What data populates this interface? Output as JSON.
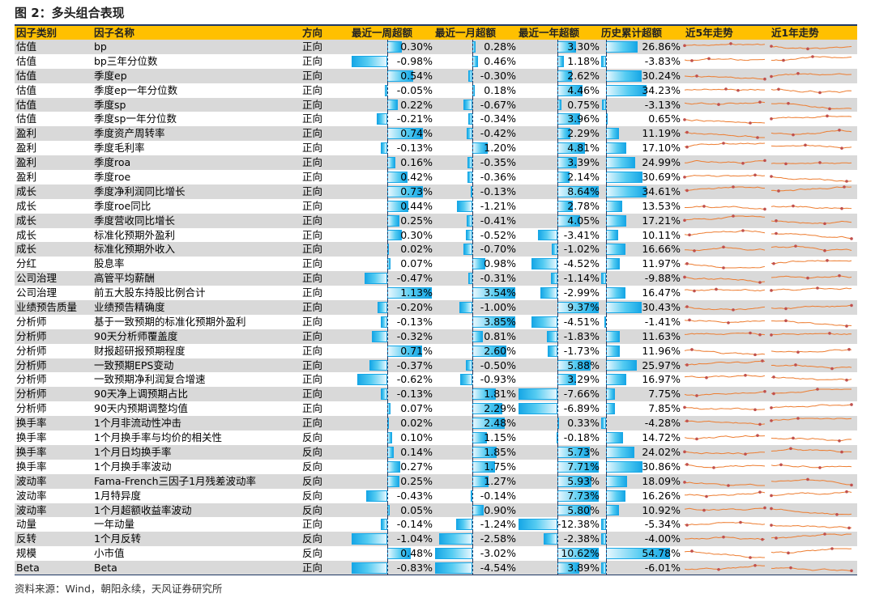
{
  "title": "图 2：多头组合表现",
  "source": "资料来源：Wind，朝阳永续，天风证券研究所",
  "headers": [
    "因子类别",
    "因子名称",
    "方向",
    "最近一周超额",
    "最近一月超额",
    "最近一年超额",
    "历史累计超额",
    "近5年走势",
    "近1年走势"
  ],
  "line_color": "#ed7d31",
  "bar_color": "#17a7e6",
  "rows": [
    {
      "cat": "估值",
      "name": "bp",
      "dir": "正向",
      "w": "0.30%",
      "m": "0.28%",
      "y": "3.30%",
      "h": "26.86%"
    },
    {
      "cat": "估值",
      "name": "bp三年分位数",
      "dir": "正向",
      "w": "-0.98%",
      "m": "0.46%",
      "y": "1.18%",
      "h": "-3.83%"
    },
    {
      "cat": "估值",
      "name": "季度ep",
      "dir": "正向",
      "w": "0.54%",
      "m": "-0.30%",
      "y": "2.62%",
      "h": "30.24%"
    },
    {
      "cat": "估值",
      "name": "季度ep一年分位数",
      "dir": "正向",
      "w": "-0.05%",
      "m": "0.18%",
      "y": "4.46%",
      "h": "34.23%"
    },
    {
      "cat": "估值",
      "name": "季度sp",
      "dir": "正向",
      "w": "0.22%",
      "m": "-0.67%",
      "y": "0.75%",
      "h": "-3.13%"
    },
    {
      "cat": "估值",
      "name": "季度sp一年分位数",
      "dir": "正向",
      "w": "-0.21%",
      "m": "-0.34%",
      "y": "3.96%",
      "h": "0.65%"
    },
    {
      "cat": "盈利",
      "name": "季度资产周转率",
      "dir": "正向",
      "w": "0.74%",
      "m": "-0.42%",
      "y": "2.29%",
      "h": "11.19%"
    },
    {
      "cat": "盈利",
      "name": "季度毛利率",
      "dir": "正向",
      "w": "-0.13%",
      "m": "1.20%",
      "y": "4.81%",
      "h": "17.10%"
    },
    {
      "cat": "盈利",
      "name": "季度roa",
      "dir": "正向",
      "w": "0.16%",
      "m": "-0.35%",
      "y": "3.39%",
      "h": "24.99%"
    },
    {
      "cat": "盈利",
      "name": "季度roe",
      "dir": "正向",
      "w": "0.42%",
      "m": "-0.36%",
      "y": "2.14%",
      "h": "30.69%"
    },
    {
      "cat": "成长",
      "name": "季度净利润同比增长",
      "dir": "正向",
      "w": "0.73%",
      "m": "-0.13%",
      "y": "8.64%",
      "h": "34.61%"
    },
    {
      "cat": "成长",
      "name": "季度roe同比",
      "dir": "正向",
      "w": "0.44%",
      "m": "-1.21%",
      "y": "2.78%",
      "h": "13.53%"
    },
    {
      "cat": "成长",
      "name": "季度营收同比增长",
      "dir": "正向",
      "w": "0.25%",
      "m": "-0.41%",
      "y": "4.05%",
      "h": "17.21%"
    },
    {
      "cat": "成长",
      "name": "标准化预期外盈利",
      "dir": "正向",
      "w": "0.30%",
      "m": "-0.52%",
      "y": "-3.41%",
      "h": "10.11%"
    },
    {
      "cat": "成长",
      "name": "标准化预期外收入",
      "dir": "正向",
      "w": "0.02%",
      "m": "-0.70%",
      "y": "-1.02%",
      "h": "16.66%"
    },
    {
      "cat": "分红",
      "name": "股息率",
      "dir": "正向",
      "w": "0.07%",
      "m": "0.98%",
      "y": "-4.52%",
      "h": "11.97%"
    },
    {
      "cat": "公司治理",
      "name": "高管平均薪酬",
      "dir": "正向",
      "w": "-0.47%",
      "m": "-0.31%",
      "y": "-1.14%",
      "h": "-9.88%"
    },
    {
      "cat": "公司治理",
      "name": "前五大股东持股比例合计",
      "dir": "正向",
      "w": "1.13%",
      "m": "3.54%",
      "y": "-2.99%",
      "h": "16.47%"
    },
    {
      "cat": "业绩预告质量",
      "name": "业绩预告精确度",
      "dir": "正向",
      "w": "-0.20%",
      "m": "-1.00%",
      "y": "9.37%",
      "h": "30.43%"
    },
    {
      "cat": "分析师",
      "name": "基于一致预期的标准化预期外盈利",
      "dir": "正向",
      "w": "-0.13%",
      "m": "3.85%",
      "y": "-4.51%",
      "h": "-1.41%"
    },
    {
      "cat": "分析师",
      "name": "90天分析师覆盖度",
      "dir": "正向",
      "w": "-0.32%",
      "m": "0.81%",
      "y": "-1.83%",
      "h": "11.63%"
    },
    {
      "cat": "分析师",
      "name": "财报超研报预期程度",
      "dir": "正向",
      "w": "0.71%",
      "m": "2.60%",
      "y": "-1.73%",
      "h": "11.96%"
    },
    {
      "cat": "分析师",
      "name": "一致预期EPS变动",
      "dir": "正向",
      "w": "-0.37%",
      "m": "-0.50%",
      "y": "5.88%",
      "h": "25.97%"
    },
    {
      "cat": "分析师",
      "name": "一致预期净利润复合增速",
      "dir": "正向",
      "w": "-0.62%",
      "m": "-0.93%",
      "y": "3.29%",
      "h": "16.97%"
    },
    {
      "cat": "分析师",
      "name": "90天净上调预期占比",
      "dir": "正向",
      "w": "-0.13%",
      "m": "1.81%",
      "y": "-7.66%",
      "h": "7.75%"
    },
    {
      "cat": "分析师",
      "name": "90天内预期调整均值",
      "dir": "正向",
      "w": "0.07%",
      "m": "2.29%",
      "y": "-6.89%",
      "h": "7.85%"
    },
    {
      "cat": "换手率",
      "name": "1个月非流动性冲击",
      "dir": "正向",
      "w": "0.02%",
      "m": "2.48%",
      "y": "0.33%",
      "h": "-4.28%"
    },
    {
      "cat": "换手率",
      "name": "1个月换手率与均价的相关性",
      "dir": "反向",
      "w": "0.10%",
      "m": "1.15%",
      "y": "-0.18%",
      "h": "14.72%"
    },
    {
      "cat": "换手率",
      "name": "1个月日均换手率",
      "dir": "反向",
      "w": "0.14%",
      "m": "1.85%",
      "y": "5.73%",
      "h": "24.02%"
    },
    {
      "cat": "换手率",
      "name": "1个月换手率波动",
      "dir": "反向",
      "w": "0.27%",
      "m": "1.75%",
      "y": "7.71%",
      "h": "30.86%"
    },
    {
      "cat": "波动率",
      "name": "Fama-French三因子1月残差波动率",
      "dir": "反向",
      "w": "0.25%",
      "m": "1.27%",
      "y": "5.93%",
      "h": "18.09%"
    },
    {
      "cat": "波动率",
      "name": "1月特异度",
      "dir": "反向",
      "w": "-0.43%",
      "m": "-0.14%",
      "y": "7.73%",
      "h": "16.26%"
    },
    {
      "cat": "波动率",
      "name": "1个月超额收益率波动",
      "dir": "反向",
      "w": "0.05%",
      "m": "0.90%",
      "y": "5.80%",
      "h": "10.92%"
    },
    {
      "cat": "动量",
      "name": "一年动量",
      "dir": "正向",
      "w": "-0.14%",
      "m": "-1.24%",
      "y": "-12.38%",
      "h": "-5.34%"
    },
    {
      "cat": "反转",
      "name": "1个月反转",
      "dir": "反向",
      "w": "-1.04%",
      "m": "-2.58%",
      "y": "-2.38%",
      "h": "-4.00%"
    },
    {
      "cat": "规模",
      "name": "小市值",
      "dir": "反向",
      "w": "0.48%",
      "m": "-3.02%",
      "y": "10.62%",
      "h": "54.78%"
    },
    {
      "cat": "Beta",
      "name": "Beta",
      "dir": "正向",
      "w": "-0.83%",
      "m": "-4.54%",
      "y": "3.89%",
      "h": "-6.01%"
    }
  ]
}
